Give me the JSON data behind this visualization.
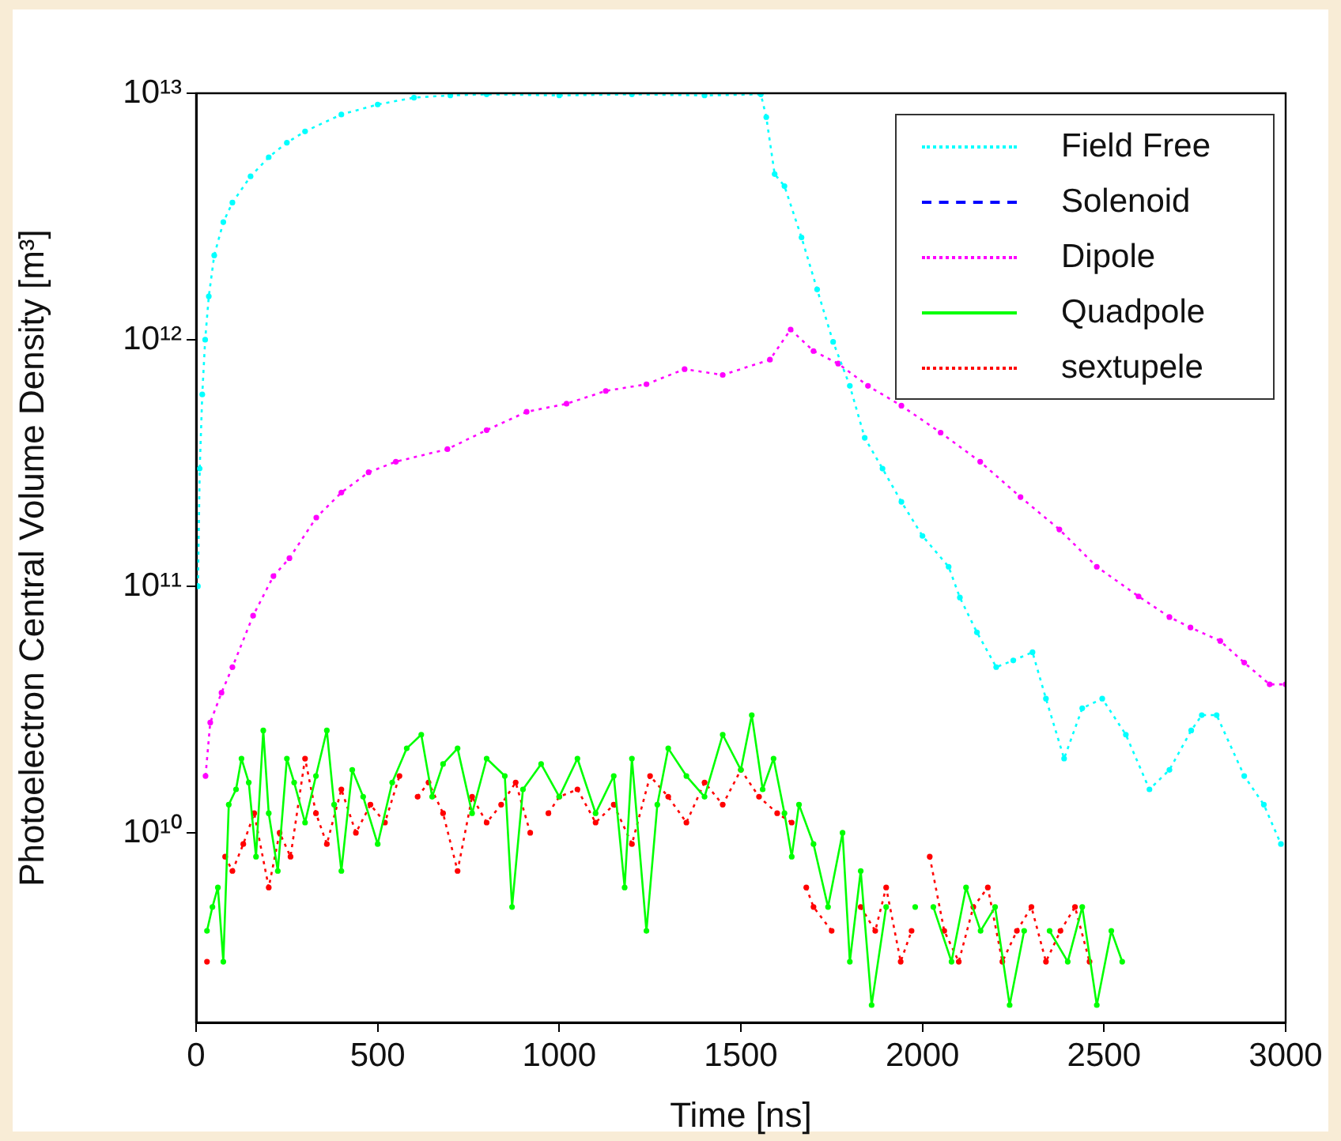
{
  "chart_data": {
    "type": "line",
    "xlabel": "Time [ns]",
    "ylabel": "Photoelectron Central Volume Density [m³]",
    "log": "y",
    "grid": false,
    "legend": "top right",
    "xlim": [
      0,
      3000
    ],
    "xticks": [
      0,
      500,
      1000,
      1500,
      2000,
      2500,
      3000
    ],
    "ylim": [
      1700000000.0,
      10000000000000.0
    ],
    "yticks": [
      {
        "value": 10000000000.0,
        "label": "10¹⁰"
      },
      {
        "value": 100000000000.0,
        "label": "10¹¹"
      },
      {
        "value": 1000000000000.0,
        "label": "10¹²"
      },
      {
        "value": 10000000000000.0,
        "label": "10¹³"
      }
    ],
    "series": [
      {
        "name": "Field Free",
        "color": "#00ffff",
        "line_style": "dotted",
        "marker": "circle",
        "x": [
          5,
          10,
          17,
          25,
          35,
          50,
          75,
          100,
          150,
          200,
          250,
          300,
          400,
          500,
          600,
          700,
          800,
          1000,
          1200,
          1400,
          1555,
          1570,
          1593,
          1620,
          1667,
          1710,
          1754,
          1800,
          1841,
          1890,
          1942,
          2000,
          2072,
          2103,
          2150,
          2203,
          2250,
          2303,
          2340,
          2390,
          2440,
          2495,
          2560,
          2625,
          2680,
          2740,
          2769,
          2810,
          2886,
          2940,
          2987
        ],
        "values": [
          100000000000.0,
          300000000000.0,
          600000000000.0,
          1000000000000.0,
          1500000000000.0,
          2200000000000.0,
          3000000000000.0,
          3600000000000.0,
          4600000000000.0,
          5500000000000.0,
          6300000000000.0,
          7000000000000.0,
          8200000000000.0,
          9000000000000.0,
          9600000000000.0,
          9800000000000.0,
          9900000000000.0,
          9800000000000.0,
          9900000000000.0,
          9800000000000.0,
          9900000000000.0,
          8000000000000.0,
          4700000000000.0,
          4200000000000.0,
          2600000000000.0,
          1600000000000.0,
          980000000000.0,
          650000000000.0,
          400000000000.0,
          300000000000.0,
          220000000000.0,
          160000000000.0,
          120000000000.0,
          90000000000.0,
          65000000000.0,
          47000000000.0,
          50000000000.0,
          54000000000.0,
          35000000000.0,
          20000000000.0,
          32000000000.0,
          35000000000.0,
          25000000000.0,
          15000000000.0,
          18000000000.0,
          26000000000.0,
          30000000000.0,
          30000000000.0,
          17000000000.0,
          13000000000.0,
          9000000000.0
        ]
      },
      {
        "name": "Solenoid",
        "color": "#0000ff",
        "line_style": "dashed",
        "marker": "none"
      },
      {
        "name": "Dipole",
        "color": "#ff00ff",
        "line_style": "dotted",
        "marker": "circle",
        "x": [
          26,
          39,
          70,
          100,
          157,
          213,
          257,
          331,
          400,
          475,
          550,
          692,
          800,
          910,
          1020,
          1128,
          1240,
          1345,
          1450,
          1580,
          1637,
          1700,
          1768,
          1850,
          1942,
          2050,
          2159,
          2270,
          2377,
          2480,
          2595,
          2680,
          2738,
          2820,
          2886,
          2956,
          3000
        ],
        "values": [
          17000000000.0,
          28000000000.0,
          37000000000.0,
          47000000000.0,
          76000000000.0,
          110000000000.0,
          130000000000.0,
          190000000000.0,
          240000000000.0,
          290000000000.0,
          320000000000.0,
          360000000000.0,
          430000000000.0,
          510000000000.0,
          550000000000.0,
          620000000000.0,
          660000000000.0,
          760000000000.0,
          720000000000.0,
          830000000000.0,
          1100000000000.0,
          900000000000.0,
          800000000000.0,
          650000000000.0,
          540000000000.0,
          420000000000.0,
          320000000000.0,
          230000000000.0,
          170000000000.0,
          120000000000.0,
          91000000000.0,
          75000000000.0,
          68000000000.0,
          60000000000.0,
          49000000000.0,
          40000000000.0,
          40000000000.0
        ]
      },
      {
        "name": "Quadpole",
        "color": "#00ff00",
        "line_style": "solid",
        "marker": "circle",
        "x": [
          30,
          45,
          60,
          75,
          90,
          110,
          125,
          145,
          165,
          185,
          200,
          225,
          250,
          270,
          300,
          330,
          360,
          380,
          400,
          430,
          460,
          500,
          540,
          580,
          620,
          650,
          680,
          720,
          760,
          800,
          850,
          870,
          900,
          950,
          1000,
          1050,
          1100,
          1150,
          1180,
          1200,
          1240,
          1270,
          1300,
          1350,
          1400,
          1450,
          1500,
          1530,
          1560,
          1590,
          1620,
          1640,
          1660,
          1700,
          1740,
          1780,
          1800,
          1830,
          1860,
          1900,
          1940,
          1980,
          2000,
          2030,
          2080,
          2120,
          2160,
          2200,
          2240,
          2280,
          2320,
          2350,
          2400,
          2440,
          2480,
          2520,
          2550
        ],
        "values": [
          4000000000.0,
          5000000000.0,
          6000000000.0,
          3000000000.0,
          13000000000.0,
          15000000000.0,
          20000000000.0,
          16000000000.0,
          8000000000.0,
          26000000000.0,
          12000000000.0,
          7000000000.0,
          20000000000.0,
          16000000000.0,
          11000000000.0,
          17000000000.0,
          26000000000.0,
          13000000000.0,
          7000000000.0,
          18000000000.0,
          14000000000.0,
          9000000000.0,
          16000000000.0,
          22000000000.0,
          25000000000.0,
          14000000000.0,
          19000000000.0,
          22000000000.0,
          12000000000.0,
          20000000000.0,
          17000000000.0,
          5000000000.0,
          15000000000.0,
          19000000000.0,
          14000000000.0,
          20000000000.0,
          12000000000.0,
          17000000000.0,
          6000000000.0,
          20000000000.0,
          4000000000.0,
          13000000000.0,
          22000000000.0,
          17000000000.0,
          14000000000.0,
          25000000000.0,
          18000000000.0,
          30000000000.0,
          15000000000.0,
          20000000000.0,
          12000000000.0,
          8000000000.0,
          13000000000.0,
          9000000000.0,
          5000000000.0,
          10000000000.0,
          3000000000.0,
          7000000000.0,
          2000000000.0,
          5000000000.0,
          null,
          5000000000.0,
          null,
          5000000000.0,
          3000000000.0,
          6000000000.0,
          4000000000.0,
          5000000000.0,
          2000000000.0,
          4000000000.0,
          null,
          4000000000.0,
          3000000000.0,
          5000000000.0,
          2000000000.0,
          4000000000.0,
          3000000000.0
        ]
      },
      {
        "name": "sextupele",
        "color": "#ff0000",
        "line_style": "dotted",
        "marker": "circle",
        "x": [
          30,
          60,
          80,
          100,
          130,
          160,
          200,
          230,
          260,
          300,
          330,
          360,
          400,
          440,
          480,
          520,
          560,
          590,
          610,
          640,
          680,
          720,
          760,
          800,
          840,
          880,
          920,
          950,
          970,
          1000,
          1050,
          1100,
          1150,
          1200,
          1250,
          1300,
          1350,
          1400,
          1450,
          1500,
          1550,
          1600,
          1640,
          1660,
          1680,
          1700,
          1750,
          1800,
          1830,
          1870,
          1900,
          1940,
          1970,
          2000,
          2020,
          2060,
          2100,
          2140,
          2180,
          2220,
          2260,
          2300,
          2340,
          2380,
          2420,
          2460
        ],
        "values": [
          3000000000.0,
          null,
          8000000000.0,
          7000000000.0,
          9000000000.0,
          12000000000.0,
          6000000000.0,
          10000000000.0,
          8000000000.0,
          20000000000.0,
          12000000000.0,
          9000000000.0,
          15000000000.0,
          10000000000.0,
          13000000000.0,
          11000000000.0,
          17000000000.0,
          null,
          14000000000.0,
          16000000000.0,
          12000000000.0,
          7000000000.0,
          14000000000.0,
          11000000000.0,
          13000000000.0,
          16000000000.0,
          10000000000.0,
          null,
          12000000000.0,
          14000000000.0,
          15000000000.0,
          11000000000.0,
          13000000000.0,
          9000000000.0,
          17000000000.0,
          14000000000.0,
          11000000000.0,
          16000000000.0,
          13000000000.0,
          18000000000.0,
          14000000000.0,
          12000000000.0,
          11000000000.0,
          null,
          6000000000.0,
          5000000000.0,
          4000000000.0,
          null,
          5000000000.0,
          4000000000.0,
          6000000000.0,
          3000000000.0,
          4000000000.0,
          null,
          8000000000.0,
          4000000000.0,
          3000000000.0,
          5000000000.0,
          6000000000.0,
          3000000000.0,
          4000000000.0,
          5000000000.0,
          3000000000.0,
          4000000000.0,
          5000000000.0,
          3000000000.0
        ]
      }
    ]
  }
}
